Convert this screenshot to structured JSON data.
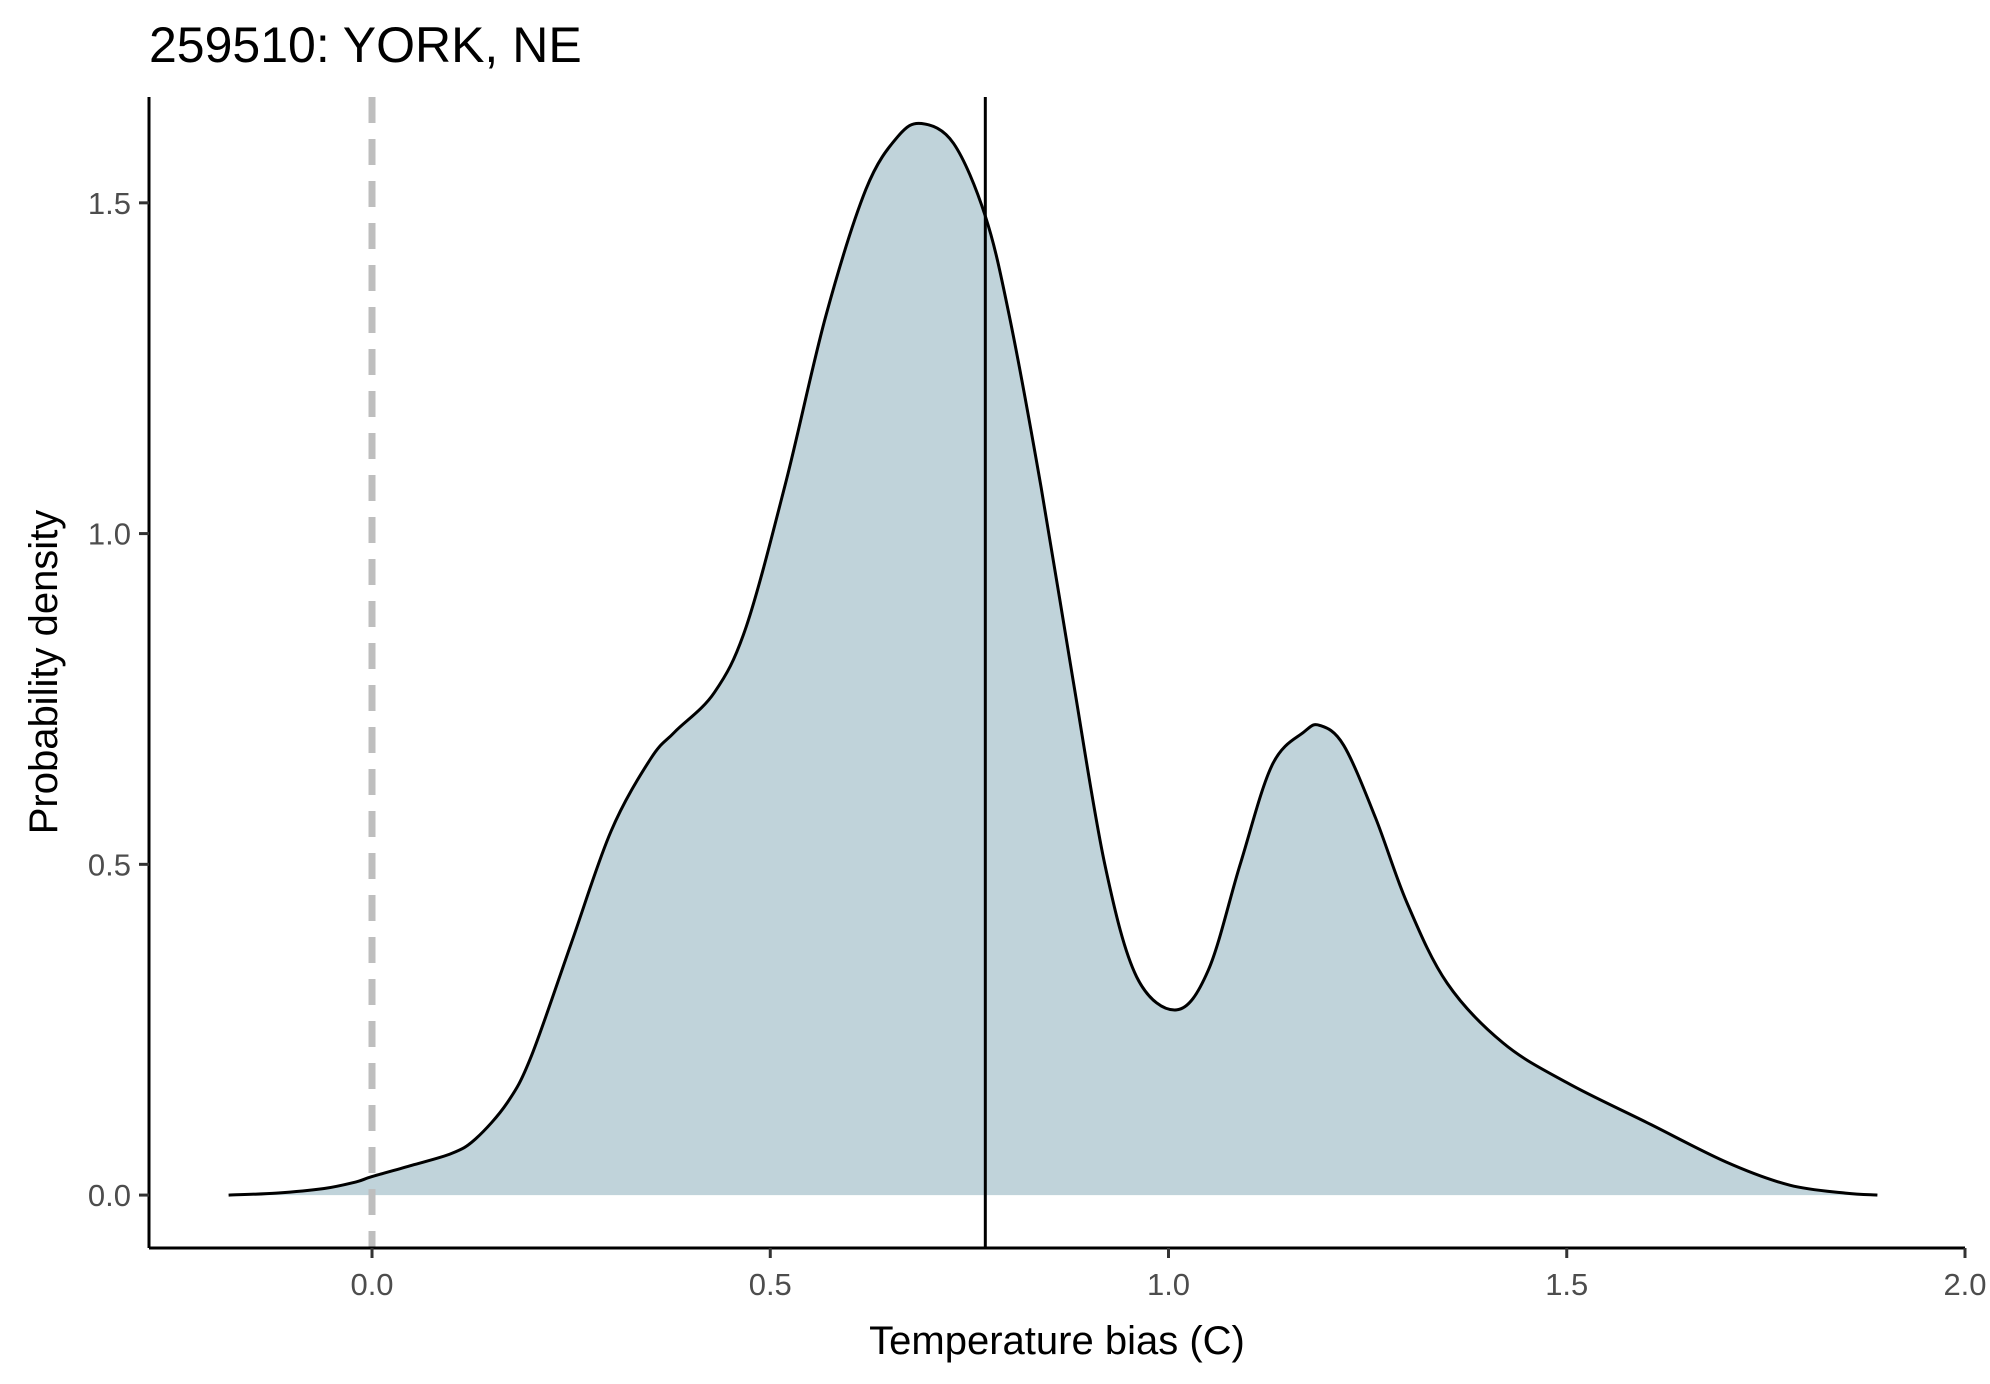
{
  "chart_data": {
    "type": "area",
    "title": "259510: YORK, NE",
    "xlabel": "Temperature bias (C)",
    "ylabel": "Probability density",
    "xlim": [
      -0.28,
      2.0
    ],
    "ylim": [
      -0.08,
      1.66
    ],
    "x_ticks": [
      0.0,
      0.5,
      1.0,
      1.5,
      2.0
    ],
    "x_tick_labels": [
      "0.0",
      "0.5",
      "1.0",
      "1.5",
      "2.0"
    ],
    "y_ticks": [
      0.0,
      0.5,
      1.0,
      1.5
    ],
    "y_tick_labels": [
      "0.0",
      "0.5",
      "1.0",
      "1.5"
    ],
    "grid": false,
    "legend": "none",
    "reference_lines": [
      {
        "x": 0.0,
        "style": "dashed",
        "color": "#bebebe"
      },
      {
        "x": 0.77,
        "style": "solid",
        "color": "#000000"
      }
    ],
    "fill_color": "#c0d3da",
    "line_color": "#000000",
    "series": [
      {
        "x": [
          -0.18,
          -0.12,
          -0.06,
          -0.02,
          0.0,
          0.05,
          0.1,
          0.13,
          0.17,
          0.2,
          0.25,
          0.3,
          0.35,
          0.38,
          0.43,
          0.47,
          0.52,
          0.57,
          0.62,
          0.66,
          0.69,
          0.73,
          0.77,
          0.8,
          0.84,
          0.88,
          0.92,
          0.96,
          1.01,
          1.05,
          1.09,
          1.13,
          1.17,
          1.19,
          1.22,
          1.26,
          1.3,
          1.35,
          1.42,
          1.5,
          1.6,
          1.7,
          1.78,
          1.85,
          1.89
        ],
        "y": [
          0.0,
          0.003,
          0.01,
          0.02,
          0.028,
          0.045,
          0.063,
          0.085,
          0.14,
          0.21,
          0.38,
          0.55,
          0.66,
          0.7,
          0.76,
          0.86,
          1.08,
          1.33,
          1.52,
          1.6,
          1.62,
          1.59,
          1.48,
          1.33,
          1.07,
          0.78,
          0.5,
          0.33,
          0.28,
          0.34,
          0.5,
          0.65,
          0.7,
          0.71,
          0.68,
          0.57,
          0.44,
          0.32,
          0.23,
          0.17,
          0.11,
          0.05,
          0.015,
          0.003,
          0.0
        ]
      }
    ]
  }
}
